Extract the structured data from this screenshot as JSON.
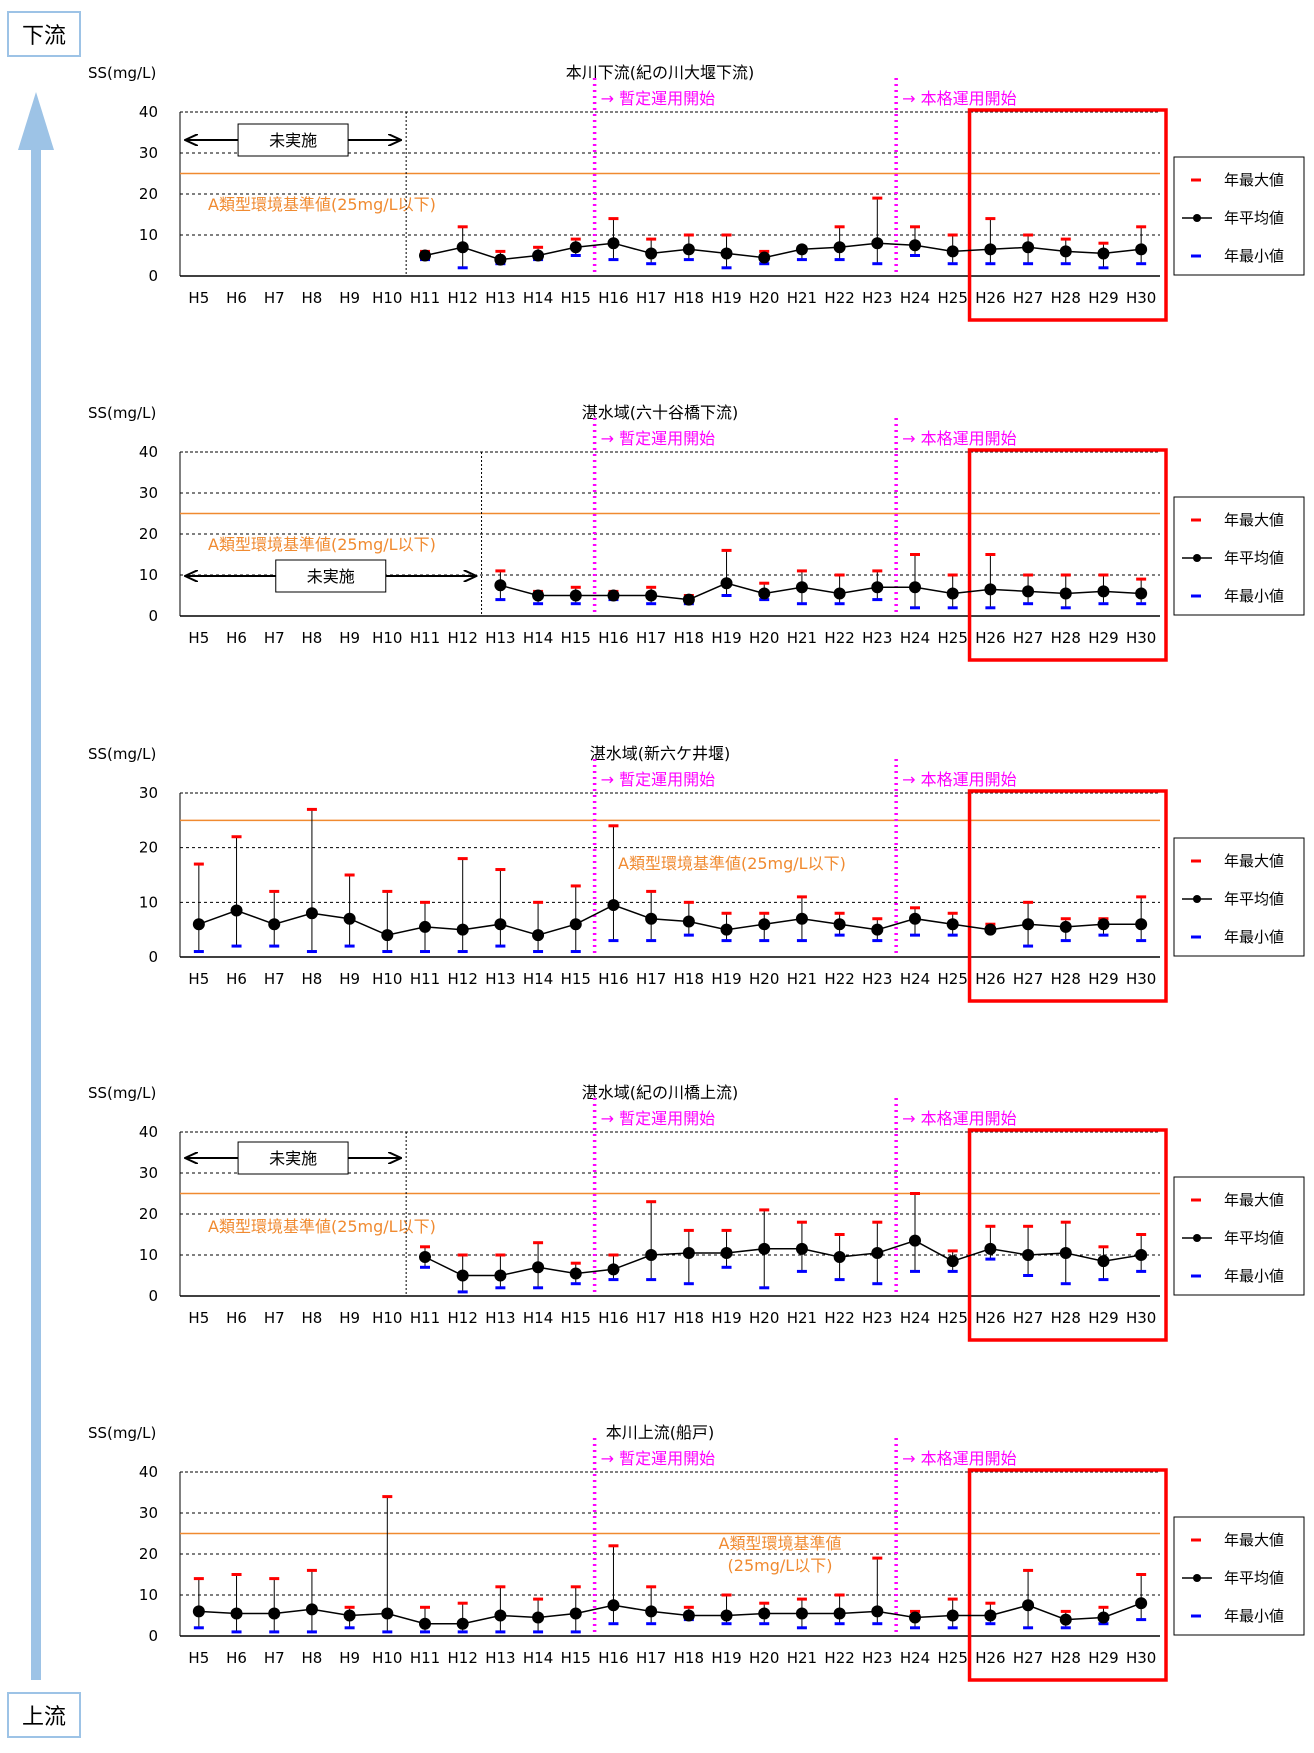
{
  "labels": {
    "downstream": "下流",
    "upstream": "上流",
    "unit": "SS(mg/L)",
    "provisional_start": "→ 暫定運用開始",
    "full_start": "→ 本格運用開始",
    "not_implemented": "未実施",
    "standard": "A類型環境基準値(25mg/L以下)",
    "standard_line1": "A類型環境基準値",
    "standard_line2": "(25mg/L以下)"
  },
  "legend": {
    "max": "年最大値",
    "mean": "年平均値",
    "min": "年最小値"
  },
  "colors": {
    "max": "#ff0000",
    "min": "#0000ff",
    "mean": "#000000",
    "standard": "#f08a30",
    "operation": "#ff00ff",
    "highlight": "#ff0000",
    "arrow": "#9dc3e6"
  },
  "chart_data": [
    {
      "type": "line",
      "title": "本川下流(紀の川大堰下流)",
      "ylabel": "SS(mg/L)",
      "ylim": [
        0,
        40
      ],
      "yticks": [
        0,
        10,
        20,
        30,
        40
      ],
      "standard": 25,
      "categories": [
        "H5",
        "H6",
        "H7",
        "H8",
        "H9",
        "H10",
        "H11",
        "H12",
        "H13",
        "H14",
        "H15",
        "H16",
        "H17",
        "H18",
        "H19",
        "H20",
        "H21",
        "H22",
        "H23",
        "H24",
        "H25",
        "H26",
        "H27",
        "H28",
        "H29",
        "H30"
      ],
      "series": [
        {
          "name": "年最大値",
          "values": [
            null,
            null,
            null,
            null,
            null,
            null,
            6,
            12,
            6,
            7,
            9,
            14,
            9,
            10,
            10,
            6,
            7,
            12,
            19,
            12,
            10,
            14,
            10,
            9,
            8,
            12
          ]
        },
        {
          "name": "年平均値",
          "values": [
            null,
            null,
            null,
            null,
            null,
            null,
            5,
            7,
            4,
            5,
            7,
            8,
            5.5,
            6.5,
            5.5,
            4.5,
            6.5,
            7,
            8,
            7.5,
            6,
            6.5,
            7,
            6,
            5.5,
            6.5
          ]
        },
        {
          "name": "年最小値",
          "values": [
            null,
            null,
            null,
            null,
            null,
            null,
            4,
            2,
            3,
            4,
            5,
            4,
            3,
            4,
            2,
            3,
            4,
            4,
            3,
            5,
            3,
            3,
            3,
            3,
            2,
            3
          ]
        }
      ],
      "annotations": {
        "not_implemented_until": "H10",
        "provisional_start": "H16",
        "full_start": "H24",
        "highlight": [
          "H26",
          "H30"
        ]
      }
    },
    {
      "type": "line",
      "title": "湛水域(六十谷橋下流)",
      "ylabel": "SS(mg/L)",
      "ylim": [
        0,
        40
      ],
      "yticks": [
        0,
        10,
        20,
        30,
        40
      ],
      "standard": 25,
      "categories": [
        "H5",
        "H6",
        "H7",
        "H8",
        "H9",
        "H10",
        "H11",
        "H12",
        "H13",
        "H14",
        "H15",
        "H16",
        "H17",
        "H18",
        "H19",
        "H20",
        "H21",
        "H22",
        "H23",
        "H24",
        "H25",
        "H26",
        "H27",
        "H28",
        "H29",
        "H30"
      ],
      "series": [
        {
          "name": "年最大値",
          "values": [
            null,
            null,
            null,
            null,
            null,
            null,
            null,
            null,
            11,
            6,
            7,
            6,
            7,
            5,
            16,
            8,
            11,
            10,
            11,
            15,
            10,
            15,
            10,
            10,
            10,
            9
          ]
        },
        {
          "name": "年平均値",
          "values": [
            null,
            null,
            null,
            null,
            null,
            null,
            null,
            null,
            7.5,
            5,
            5,
            5,
            5,
            4,
            8,
            5.5,
            7,
            5.5,
            7,
            7,
            5.5,
            6.5,
            6,
            5.5,
            6,
            5.5
          ]
        },
        {
          "name": "年最小値",
          "values": [
            null,
            null,
            null,
            null,
            null,
            null,
            null,
            null,
            4,
            3,
            3,
            4,
            3,
            3,
            5,
            4,
            3,
            3,
            4,
            2,
            2,
            2,
            3,
            2,
            3,
            3
          ]
        }
      ],
      "annotations": {
        "not_implemented_until": "H12",
        "provisional_start": "H16",
        "full_start": "H24",
        "highlight": [
          "H26",
          "H30"
        ]
      }
    },
    {
      "type": "line",
      "title": "湛水域(新六ケ井堰)",
      "ylabel": "SS(mg/L)",
      "ylim": [
        0,
        30
      ],
      "yticks": [
        0,
        10,
        20,
        30
      ],
      "standard": 25,
      "categories": [
        "H5",
        "H6",
        "H7",
        "H8",
        "H9",
        "H10",
        "H11",
        "H12",
        "H13",
        "H14",
        "H15",
        "H16",
        "H17",
        "H18",
        "H19",
        "H20",
        "H21",
        "H22",
        "H23",
        "H24",
        "H25",
        "H26",
        "H27",
        "H28",
        "H29",
        "H30"
      ],
      "series": [
        {
          "name": "年最大値",
          "values": [
            17,
            22,
            12,
            27,
            15,
            12,
            10,
            18,
            16,
            10,
            13,
            24,
            12,
            10,
            8,
            8,
            11,
            8,
            7,
            9,
            8,
            6,
            10,
            7,
            7,
            11
          ]
        },
        {
          "name": "年平均値",
          "values": [
            6,
            8.5,
            6,
            8,
            7,
            4,
            5.5,
            5,
            6,
            4,
            6,
            9.5,
            7,
            6.5,
            5,
            6,
            7,
            6,
            5,
            7,
            6,
            5,
            6,
            5.5,
            6,
            6
          ]
        },
        {
          "name": "年最小値",
          "values": [
            1,
            2,
            2,
            1,
            2,
            1,
            1,
            1,
            2,
            1,
            1,
            3,
            3,
            4,
            3,
            3,
            3,
            4,
            3,
            4,
            4,
            5,
            2,
            3,
            4,
            3
          ]
        }
      ],
      "annotations": {
        "provisional_start": "H16",
        "full_start": "H24",
        "highlight": [
          "H26",
          "H30"
        ]
      }
    },
    {
      "type": "line",
      "title": "湛水域(紀の川橋上流)",
      "ylabel": "SS(mg/L)",
      "ylim": [
        0,
        40
      ],
      "yticks": [
        0,
        10,
        20,
        30,
        40
      ],
      "standard": 25,
      "categories": [
        "H5",
        "H6",
        "H7",
        "H8",
        "H9",
        "H10",
        "H11",
        "H12",
        "H13",
        "H14",
        "H15",
        "H16",
        "H17",
        "H18",
        "H19",
        "H20",
        "H21",
        "H22",
        "H23",
        "H24",
        "H25",
        "H26",
        "H27",
        "H28",
        "H29",
        "H30"
      ],
      "series": [
        {
          "name": "年最大値",
          "values": [
            null,
            null,
            null,
            null,
            null,
            null,
            12,
            10,
            10,
            13,
            8,
            10,
            23,
            16,
            16,
            21,
            18,
            15,
            18,
            25,
            11,
            17,
            17,
            18,
            12,
            15
          ]
        },
        {
          "name": "年平均値",
          "values": [
            null,
            null,
            null,
            null,
            null,
            null,
            9.5,
            5,
            5,
            7,
            5.5,
            6.5,
            10,
            10.5,
            10.5,
            11.5,
            11.5,
            9.5,
            10.5,
            13.5,
            8.5,
            11.5,
            10,
            10.5,
            8.5,
            10
          ]
        },
        {
          "name": "年最小値",
          "values": [
            null,
            null,
            null,
            null,
            null,
            null,
            7,
            1,
            2,
            2,
            3,
            4,
            4,
            3,
            7,
            2,
            6,
            4,
            3,
            6,
            6,
            9,
            5,
            3,
            4,
            6
          ]
        }
      ],
      "annotations": {
        "not_implemented_until": "H10",
        "provisional_start": "H16",
        "full_start": "H24",
        "highlight": [
          "H26",
          "H30"
        ]
      }
    },
    {
      "type": "line",
      "title": "本川上流(船戸)",
      "ylabel": "SS(mg/L)",
      "ylim": [
        0,
        40
      ],
      "yticks": [
        0,
        10,
        20,
        30,
        40
      ],
      "standard": 25,
      "categories": [
        "H5",
        "H6",
        "H7",
        "H8",
        "H9",
        "H10",
        "H11",
        "H12",
        "H13",
        "H14",
        "H15",
        "H16",
        "H17",
        "H18",
        "H19",
        "H20",
        "H21",
        "H22",
        "H23",
        "H24",
        "H25",
        "H26",
        "H27",
        "H28",
        "H29",
        "H30"
      ],
      "series": [
        {
          "name": "年最大値",
          "values": [
            14,
            15,
            14,
            16,
            7,
            34,
            7,
            8,
            12,
            9,
            12,
            22,
            12,
            7,
            10,
            8,
            9,
            10,
            19,
            6,
            9,
            8,
            16,
            6,
            7,
            15
          ]
        },
        {
          "name": "年平均値",
          "values": [
            6,
            5.5,
            5.5,
            6.5,
            5,
            5.5,
            3,
            3,
            5,
            4.5,
            5.5,
            7.5,
            6,
            5,
            5,
            5.5,
            5.5,
            5.5,
            6,
            4.5,
            5,
            5,
            7.5,
            4,
            4.5,
            8
          ]
        },
        {
          "name": "年最小値",
          "values": [
            2,
            1,
            1,
            1,
            2,
            1,
            1,
            1,
            1,
            1,
            1,
            3,
            3,
            4,
            3,
            3,
            2,
            3,
            3,
            2,
            2,
            3,
            2,
            2,
            3,
            4
          ]
        }
      ],
      "annotations": {
        "provisional_start": "H16",
        "full_start": "H24",
        "highlight": [
          "H26",
          "H30"
        ]
      }
    }
  ]
}
